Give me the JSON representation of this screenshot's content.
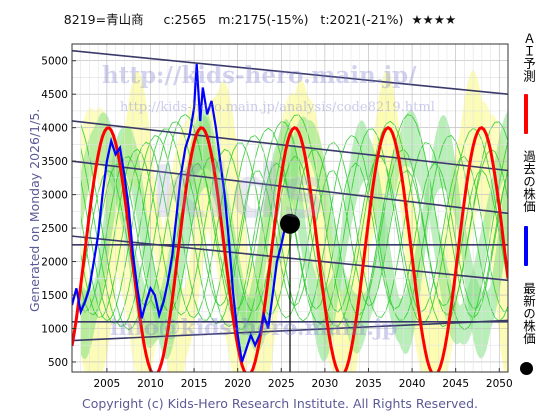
{
  "header": {
    "title": "8219=青山商     c:2565   m:2175(-15%)   t:2021(-21%)  ★★★★"
  },
  "side_label": "Generated on Monday 2026/1/5.",
  "footer": "Copyright (c) Kids-Hero Research Institute. All Rights Reserved.",
  "watermarks": {
    "url": "http://kids-hero.main.jp/",
    "analysis_url": "http://kids-hero.main.jp/analysis/code8219.html",
    "email": "info@kids-hero.main.jp",
    "logo": "Kids"
  },
  "legend": {
    "ai_label": "ＡＩ予測",
    "past_label": "過去の株価",
    "latest_label": "最新の株価"
  },
  "colors": {
    "ai": "#ff0000",
    "past": "#0000ff",
    "latest": "#000000",
    "band_green": "#33cc33",
    "band_yellow": "#fcfcb0",
    "trend": "#3a3a6a"
  },
  "chart_data": {
    "type": "line",
    "xlim": [
      2001,
      2051
    ],
    "ylim": [
      350,
      5250
    ],
    "x_ticks": [
      2005,
      2010,
      2015,
      2020,
      2025,
      2030,
      2035,
      2040,
      2045,
      2050
    ],
    "y_ticks": [
      500,
      1000,
      1500,
      2000,
      2500,
      3000,
      3500,
      4000,
      4500,
      5000
    ],
    "grid": true,
    "legend_position": "right",
    "latest_point": {
      "x": 2026.0,
      "y": 2565
    },
    "past_prices": [
      [
        2001.0,
        1350
      ],
      [
        2001.5,
        1600
      ],
      [
        2002.0,
        1250
      ],
      [
        2002.5,
        1400
      ],
      [
        2003.0,
        1600
      ],
      [
        2003.5,
        2000
      ],
      [
        2004.0,
        2400
      ],
      [
        2004.5,
        3000
      ],
      [
        2005.0,
        3500
      ],
      [
        2005.5,
        3800
      ],
      [
        2006.0,
        3600
      ],
      [
        2006.5,
        3700
      ],
      [
        2007.0,
        3300
      ],
      [
        2007.5,
        2800
      ],
      [
        2008.0,
        2100
      ],
      [
        2008.5,
        1600
      ],
      [
        2009.0,
        1150
      ],
      [
        2009.5,
        1400
      ],
      [
        2010.0,
        1600
      ],
      [
        2010.5,
        1500
      ],
      [
        2011.0,
        1200
      ],
      [
        2011.5,
        1400
      ],
      [
        2012.0,
        1700
      ],
      [
        2012.5,
        2100
      ],
      [
        2013.0,
        2700
      ],
      [
        2013.5,
        3300
      ],
      [
        2014.0,
        3700
      ],
      [
        2014.5,
        3900
      ],
      [
        2015.0,
        4300
      ],
      [
        2015.3,
        4950
      ],
      [
        2015.7,
        4100
      ],
      [
        2016.0,
        4600
      ],
      [
        2016.5,
        4200
      ],
      [
        2017.0,
        4400
      ],
      [
        2017.5,
        4000
      ],
      [
        2018.0,
        3500
      ],
      [
        2018.5,
        3000
      ],
      [
        2019.0,
        2300
      ],
      [
        2019.5,
        1500
      ],
      [
        2020.0,
        900
      ],
      [
        2020.5,
        500
      ],
      [
        2021.0,
        700
      ],
      [
        2021.5,
        900
      ],
      [
        2022.0,
        750
      ],
      [
        2022.5,
        900
      ],
      [
        2023.0,
        1200
      ],
      [
        2023.5,
        1000
      ],
      [
        2024.0,
        1500
      ],
      [
        2024.5,
        2000
      ],
      [
        2025.0,
        2250
      ],
      [
        2025.5,
        2550
      ],
      [
        2026.0,
        2565
      ]
    ],
    "ai_forecast": {
      "x_start": 2001,
      "x_end": 2051,
      "center": 2150,
      "amplitude": 1850,
      "period": 10.7,
      "phase_peak": 2005.15,
      "step": 0.25
    },
    "trend_lines": [
      {
        "x": [
          2001,
          2051
        ],
        "y": [
          5150,
          4500
        ]
      },
      {
        "x": [
          2001,
          2051
        ],
        "y": [
          4100,
          3360
        ]
      },
      {
        "x": [
          2001,
          2051
        ],
        "y": [
          3500,
          2720
        ]
      },
      {
        "x": [
          2001,
          2051
        ],
        "y": [
          2250,
          2250
        ]
      },
      {
        "x": [
          2001,
          2051
        ],
        "y": [
          2380,
          1720
        ]
      },
      {
        "x": [
          2001,
          2051
        ],
        "y": [
          1100,
          1100
        ]
      },
      {
        "x": [
          2001,
          2051
        ],
        "y": [
          820,
          1120
        ]
      },
      {
        "x": [
          2001,
          2051
        ],
        "y": [
          300,
          300
        ]
      }
    ]
  }
}
